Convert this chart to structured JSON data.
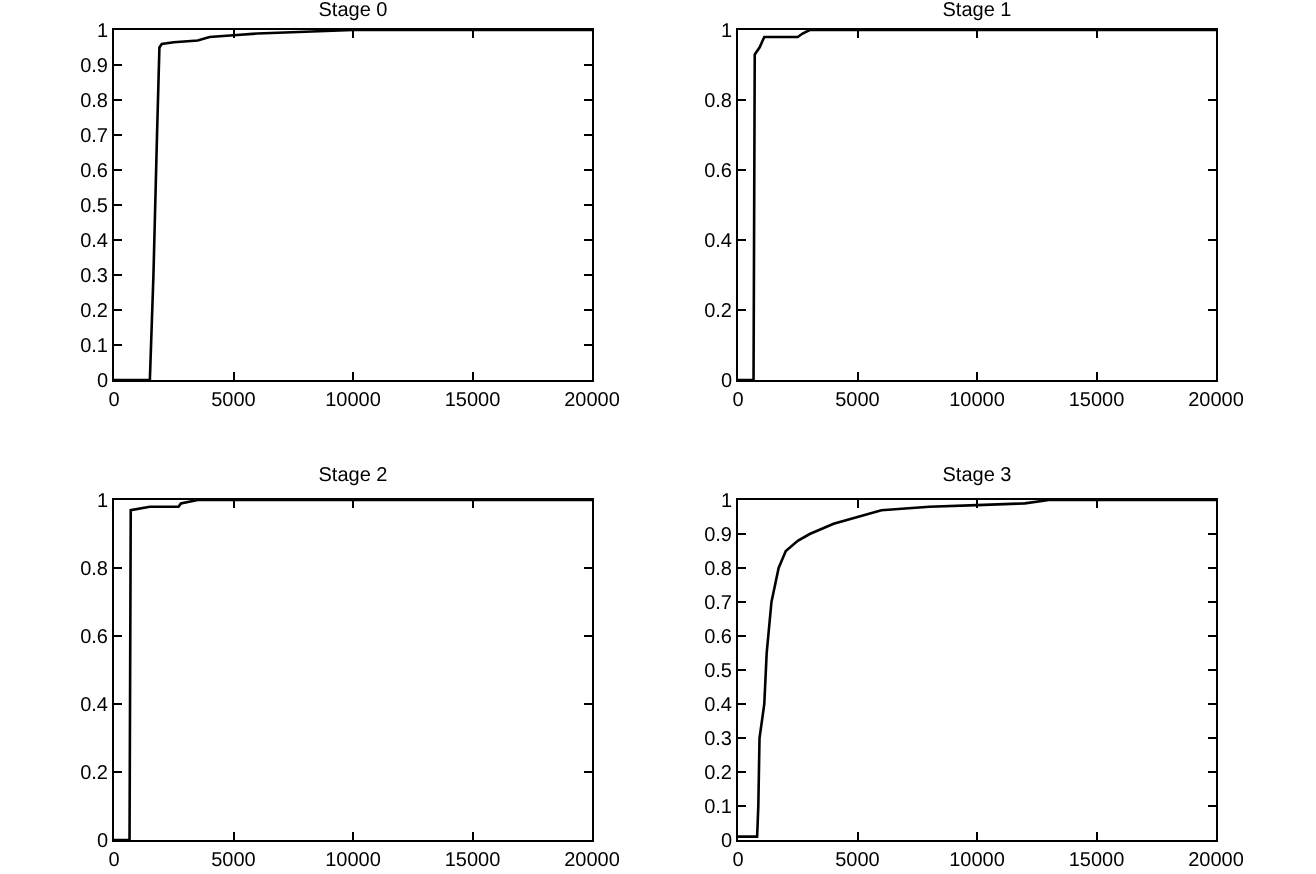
{
  "chart_data": [
    {
      "type": "line",
      "title": "Stage 0",
      "color": "#000000",
      "x": [
        0,
        1500,
        1650,
        1800,
        1900,
        2000,
        2500,
        3500,
        4000,
        5000,
        6000,
        8000,
        10000,
        20000
      ],
      "values": [
        0,
        0,
        0.3,
        0.7,
        0.95,
        0.96,
        0.965,
        0.97,
        0.98,
        0.985,
        0.99,
        0.995,
        1,
        1
      ],
      "xlim": [
        0,
        20000
      ],
      "xticks": [
        0,
        5000,
        10000,
        15000,
        20000
      ],
      "ylim": [
        0,
        1
      ],
      "yticks": [
        0,
        0.1,
        0.2,
        0.3,
        0.4,
        0.5,
        0.6,
        0.7,
        0.8,
        0.9,
        1
      ]
    },
    {
      "type": "line",
      "title": "Stage 1",
      "color": "#000000",
      "x": [
        0,
        650,
        700,
        900,
        1100,
        2500,
        2700,
        3000,
        20000
      ],
      "values": [
        0,
        0,
        0.93,
        0.95,
        0.98,
        0.98,
        0.99,
        1,
        1
      ],
      "xlim": [
        0,
        20000
      ],
      "xticks": [
        0,
        5000,
        10000,
        15000,
        20000
      ],
      "ylim": [
        0,
        1
      ],
      "yticks": [
        0,
        0.2,
        0.4,
        0.6,
        0.8,
        1
      ]
    },
    {
      "type": "line",
      "title": "Stage 2",
      "color": "#000000",
      "x": [
        0,
        650,
        700,
        1500,
        2700,
        2800,
        3500,
        20000
      ],
      "values": [
        0,
        0,
        0.97,
        0.98,
        0.98,
        0.99,
        1,
        1
      ],
      "xlim": [
        0,
        20000
      ],
      "xticks": [
        0,
        5000,
        10000,
        15000,
        20000
      ],
      "ylim": [
        0,
        1
      ],
      "yticks": [
        0,
        0.2,
        0.4,
        0.6,
        0.8,
        1
      ]
    },
    {
      "type": "line",
      "title": "Stage 3",
      "color": "#000000",
      "x": [
        0,
        800,
        850,
        900,
        1100,
        1200,
        1400,
        1700,
        2000,
        2500,
        3000,
        4000,
        5000,
        6000,
        8000,
        10000,
        12000,
        13000,
        20000
      ],
      "values": [
        0.01,
        0.01,
        0.1,
        0.3,
        0.4,
        0.55,
        0.7,
        0.8,
        0.85,
        0.88,
        0.9,
        0.93,
        0.95,
        0.97,
        0.98,
        0.985,
        0.99,
        1,
        1
      ],
      "xlim": [
        0,
        20000
      ],
      "xticks": [
        0,
        5000,
        10000,
        15000,
        20000
      ],
      "ylim": [
        0,
        1
      ],
      "yticks": [
        0,
        0.1,
        0.2,
        0.3,
        0.4,
        0.5,
        0.6,
        0.7,
        0.8,
        0.9,
        1
      ]
    }
  ]
}
